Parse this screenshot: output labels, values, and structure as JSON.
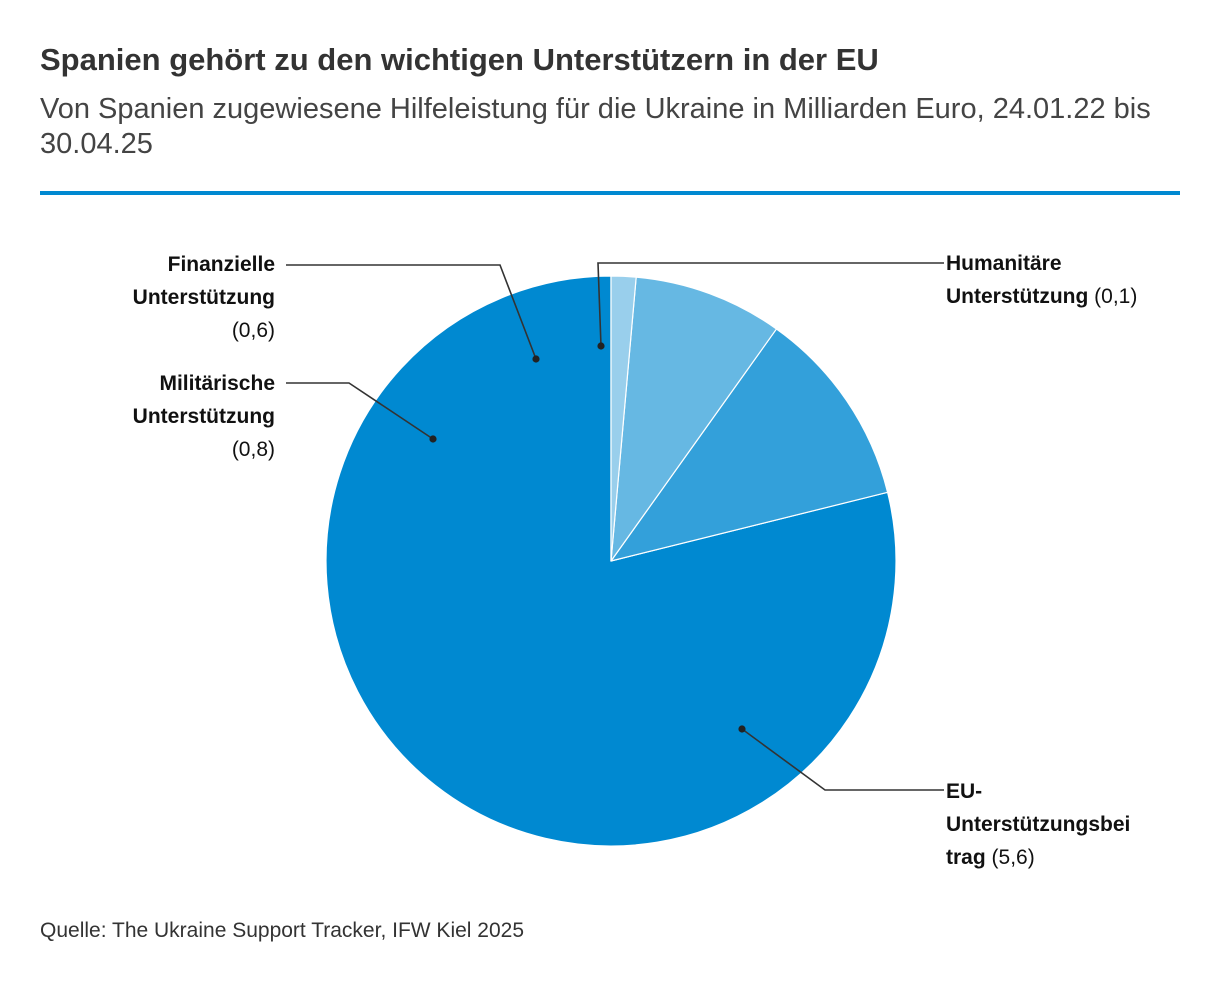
{
  "chart_data": {
    "type": "pie",
    "title": "Spanien gehört zu den wichtigen Unterstützern in der EU",
    "subtitle": "Von Spanien zugewiesene Hilfeleistung für die Ukraine in Milliarden Euro, 24.01.22 bis 30.04.25",
    "unit": "Milliarden Euro",
    "slices": [
      {
        "label_line1": "EU-",
        "label_line2": "Unterstützungsbei",
        "label_line3": "trag",
        "value": 5.6,
        "value_label": "(5,6)",
        "color": "#0089d1"
      },
      {
        "label_line1": "Militärische",
        "label_line2": "Unterstützung",
        "value": 0.8,
        "value_label": "(0,8)",
        "color": "#33a0da"
      },
      {
        "label_line1": "Finanzielle",
        "label_line2": "Unterstützung",
        "value": 0.6,
        "value_label": "(0,6)",
        "color": "#66b8e3"
      },
      {
        "label_line1": "Humanitäre",
        "label_line2": "Unterstützung",
        "value": 0.1,
        "value_label": "(0,1)",
        "color": "#99cfec"
      }
    ],
    "source": "Quelle: The Ukraine Support Tracker, IFW Kiel 2025"
  },
  "colors": {
    "accent_rule": "#0089d1",
    "leader_line": "#333333"
  }
}
